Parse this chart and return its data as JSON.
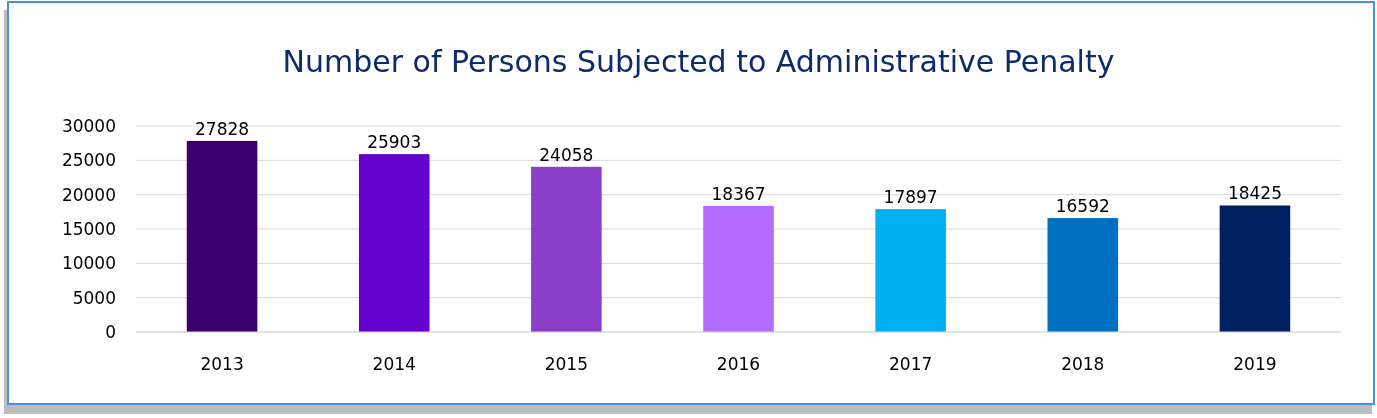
{
  "chart_data": {
    "type": "bar",
    "title": "Number of Persons Subjected to Administrative Penalty",
    "categories": [
      "2013",
      "2014",
      "2015",
      "2016",
      "2017",
      "2018",
      "2019"
    ],
    "values": [
      27828,
      25903,
      24058,
      18367,
      17897,
      16592,
      18425
    ],
    "colors": [
      "#3d006e",
      "#6600cc",
      "#8b3fc8",
      "#b36cff",
      "#00b0f0",
      "#0070c0",
      "#002060"
    ],
    "ylim": [
      0,
      30000
    ],
    "yticks": [
      0,
      5000,
      10000,
      15000,
      20000,
      25000,
      30000
    ],
    "grid": "y",
    "data_labels": true
  }
}
